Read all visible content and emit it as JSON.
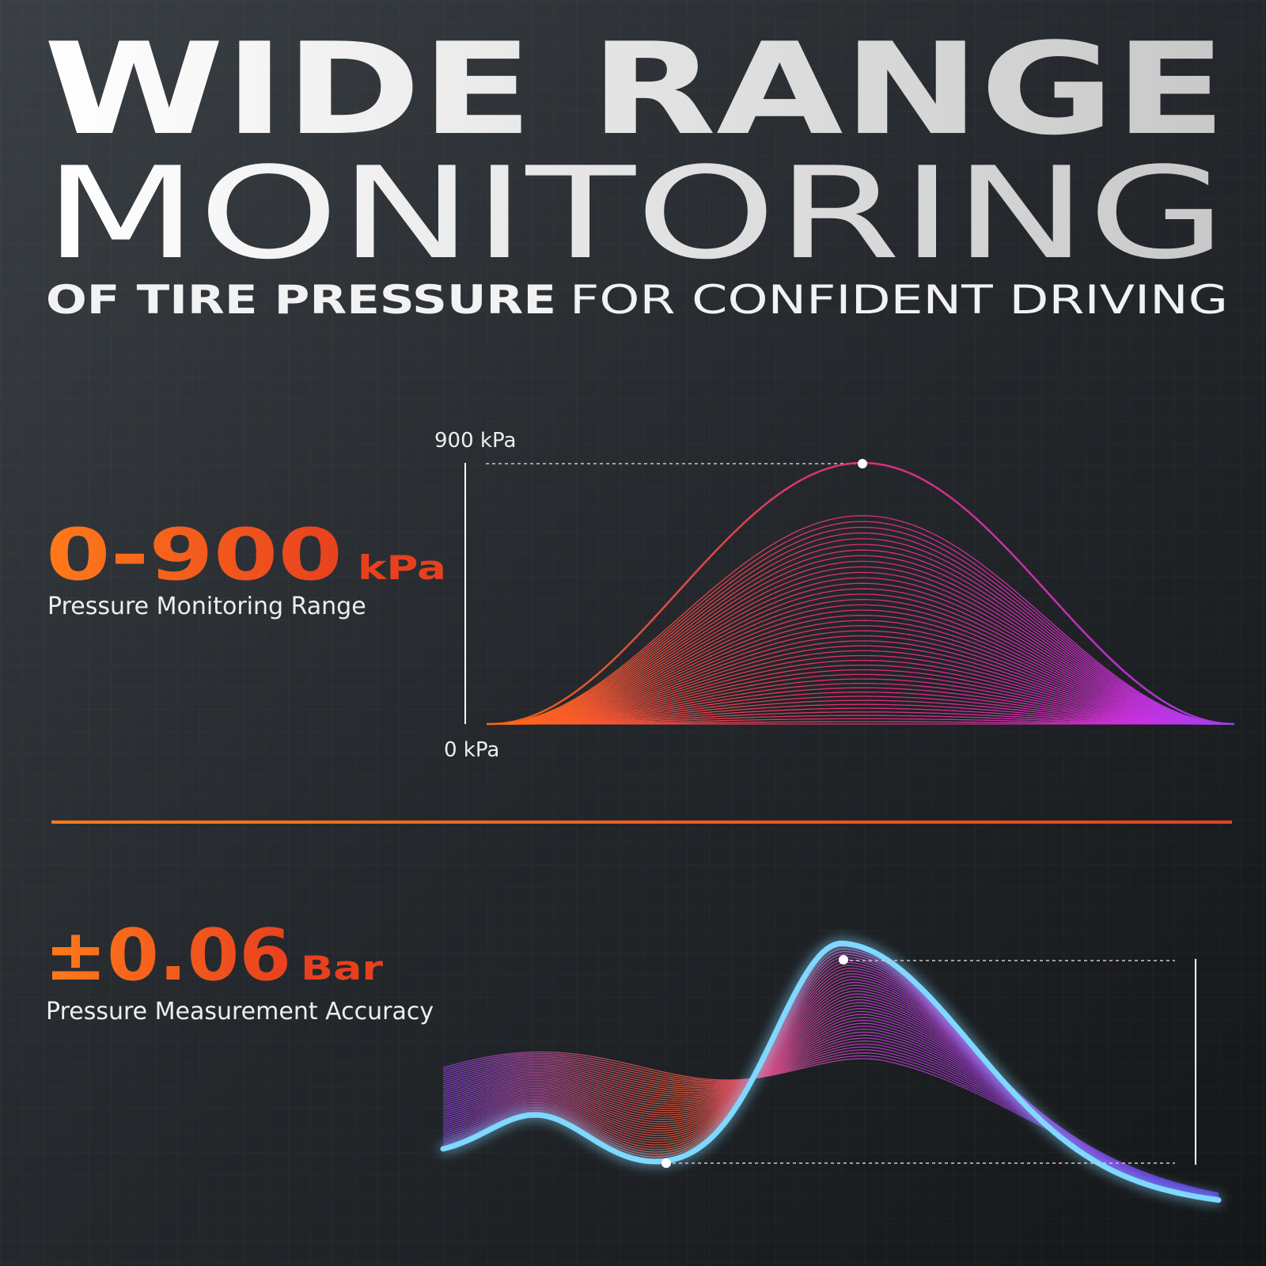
{
  "header": {
    "title_line1": "WIDE RANGE",
    "title_line2": "MONITORING",
    "subtitle_bold": "OF TIRE PRESSURE",
    "subtitle_light": "FOR CONFIDENT DRIVING"
  },
  "range_panel": {
    "figure": "0-900",
    "unit": "kPa",
    "caption": "Pressure Monitoring Range",
    "axis_top_label": "900 kPa",
    "axis_bottom_label": "0 kPa"
  },
  "accuracy_panel": {
    "figure": "±0.06",
    "unit": "Bar",
    "caption": "Pressure Measurement Accuracy"
  }
}
